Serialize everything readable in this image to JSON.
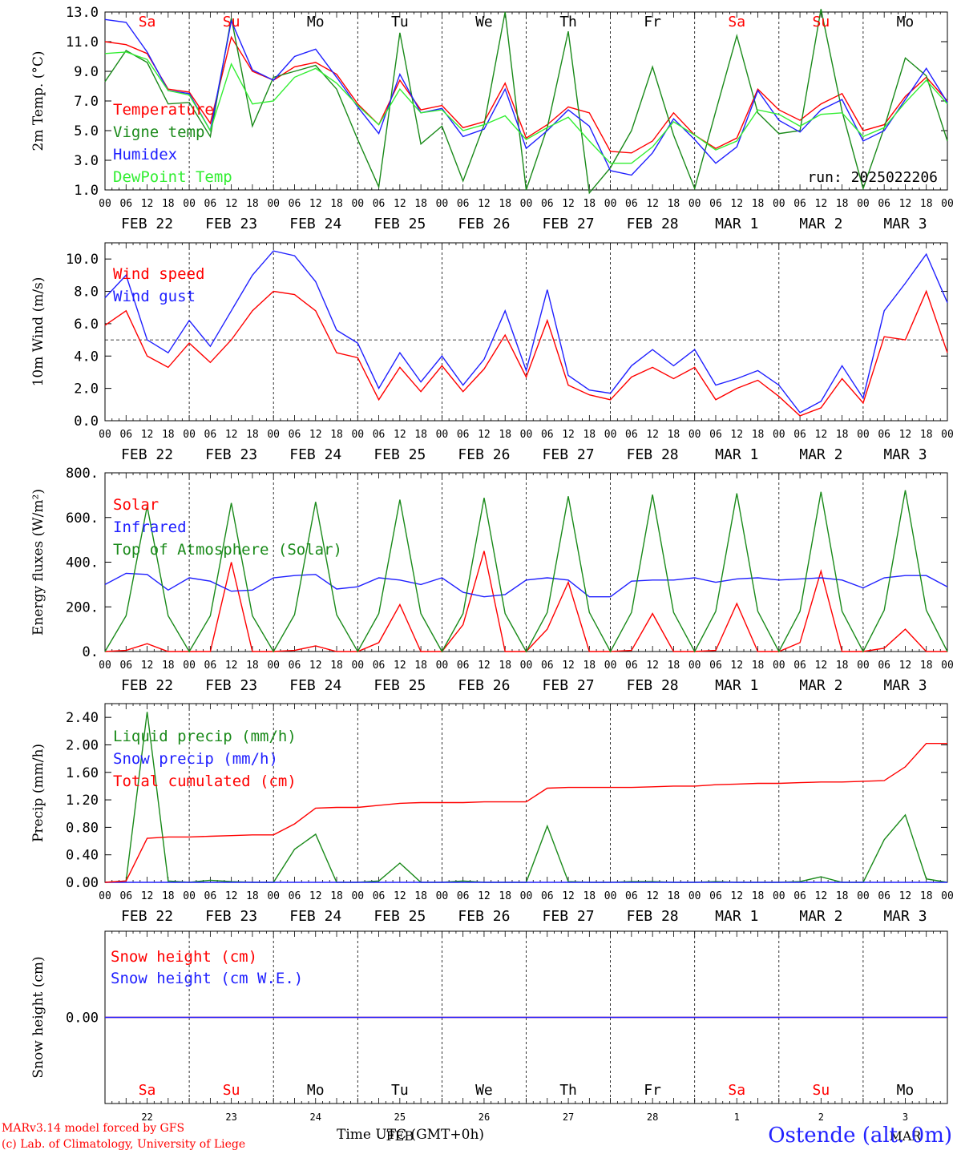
{
  "header": {
    "run_label": "run: 2025022206",
    "days_short": [
      "Sa",
      "Su",
      "Mo",
      "Tu",
      "We",
      "Th",
      "Fr",
      "Sa",
      "Su",
      "Mo"
    ],
    "days_colors": [
      "#ff0000",
      "#ff0000",
      "#000000",
      "#000000",
      "#000000",
      "#000000",
      "#000000",
      "#ff0000",
      "#ff0000",
      "#000000"
    ],
    "date_labels": [
      "FEB 22",
      "FEB 23",
      "FEB 24",
      "FEB 25",
      "FEB 26",
      "FEB 27",
      "FEB 28",
      "MAR  1",
      "MAR  2",
      "MAR  3"
    ],
    "day_numbers": [
      "22",
      "23",
      "24",
      "25",
      "26",
      "27",
      "28",
      "1",
      "2",
      "3"
    ],
    "hour_ticks": [
      "00",
      "06",
      "12",
      "18"
    ],
    "hour_end": "00",
    "month_axis_label": "FEB",
    "month_axis_label2": "MAR"
  },
  "footer": {
    "credit_line1": "MARv3.14 model forced by GFS",
    "credit_line2": "(c) Lab. of Climatology, University of Liege",
    "x_axis_label": "Time UTC (GMT+0h)",
    "station": "Ostende (alt. 0m)"
  },
  "colors": {
    "red": "#ff0000",
    "blue": "#2020ff",
    "green": "#1a8a1a",
    "lightgreen": "#33ee33",
    "grid": "#000000"
  },
  "chart_data": [
    {
      "type": "line",
      "ylabel": "2m Temp. (°C)",
      "ylim": [
        1.0,
        13.0
      ],
      "yticks": [
        "1.0",
        "3.0",
        "5.0",
        "7.0",
        "9.0",
        "11.0",
        "13.0"
      ],
      "x_hours": [
        0,
        6,
        12,
        18,
        24,
        30,
        36,
        42,
        48,
        54,
        60,
        66,
        72,
        78,
        84,
        90,
        96,
        102,
        108,
        114,
        120,
        126,
        132,
        138,
        144,
        150,
        156,
        162,
        168,
        174,
        180,
        186,
        192,
        198,
        204,
        210,
        216,
        222,
        228,
        234,
        240
      ],
      "series": [
        {
          "name": "Temperature",
          "color": "#ff0000",
          "values": [
            11.0,
            10.8,
            10.2,
            7.8,
            7.6,
            5.5,
            11.3,
            9.0,
            8.4,
            9.3,
            9.6,
            8.8,
            6.8,
            5.4,
            8.4,
            6.4,
            6.7,
            5.2,
            5.6,
            8.2,
            4.5,
            5.4,
            6.6,
            6.2,
            3.6,
            3.5,
            4.3,
            6.2,
            4.7,
            3.8,
            4.5,
            7.8,
            6.4,
            5.7,
            6.8,
            7.5,
            5.0,
            5.4,
            7.3,
            8.6,
            7.0
          ]
        },
        {
          "name": "Vigne temp",
          "color": "#1a8a1a",
          "values": [
            8.3,
            10.4,
            9.6,
            6.8,
            6.9,
            4.6,
            12.6,
            5.3,
            8.6,
            9.0,
            9.4,
            7.8,
            4.4,
            1.2,
            11.6,
            4.1,
            5.3,
            1.6,
            5.4,
            13.0,
            1.0,
            5.2,
            11.7,
            0.8,
            2.5,
            5.0,
            9.3,
            4.7,
            1.1,
            6.3,
            11.4,
            6.2,
            4.8,
            5.0,
            13.2,
            6.3,
            1.1,
            5.2,
            9.9,
            8.7,
            4.3
          ]
        },
        {
          "name": "Humidex",
          "color": "#2020ff",
          "values": [
            12.5,
            12.3,
            10.3,
            7.7,
            7.5,
            5.0,
            12.4,
            9.1,
            8.4,
            10.0,
            10.5,
            8.6,
            6.6,
            4.8,
            8.8,
            6.2,
            6.5,
            4.6,
            5.1,
            7.8,
            3.8,
            5.0,
            6.4,
            5.3,
            2.3,
            2.0,
            3.5,
            5.8,
            4.4,
            2.8,
            3.9,
            7.7,
            5.7,
            4.9,
            6.4,
            7.1,
            4.3,
            5.0,
            7.1,
            9.2,
            6.9
          ]
        },
        {
          "name": "DewPoint Temp",
          "color": "#33ee33",
          "values": [
            10.2,
            10.3,
            9.8,
            7.7,
            7.4,
            5.0,
            9.5,
            6.8,
            7.0,
            8.6,
            9.2,
            8.2,
            6.7,
            5.4,
            7.8,
            6.2,
            6.4,
            5.0,
            5.4,
            6.0,
            4.4,
            5.2,
            5.9,
            4.3,
            2.8,
            2.8,
            3.9,
            5.6,
            4.7,
            3.7,
            4.3,
            6.4,
            6.1,
            5.3,
            6.1,
            6.2,
            4.6,
            5.2,
            6.9,
            8.4,
            6.8
          ]
        }
      ]
    },
    {
      "type": "line",
      "ylabel": "10m Wind (m/s)",
      "ylim": [
        0.0,
        11.0
      ],
      "yticks": [
        "0.0",
        "2.0",
        "4.0",
        "6.0",
        "8.0",
        "10.0"
      ],
      "hline": 5.0,
      "x_hours": [
        0,
        6,
        12,
        18,
        24,
        30,
        36,
        42,
        48,
        54,
        60,
        66,
        72,
        78,
        84,
        90,
        96,
        102,
        108,
        114,
        120,
        126,
        132,
        138,
        144,
        150,
        156,
        162,
        168,
        174,
        180,
        186,
        192,
        198,
        204,
        210,
        216,
        222,
        228,
        234,
        240
      ],
      "series": [
        {
          "name": "Wind speed",
          "color": "#ff0000",
          "values": [
            5.9,
            6.8,
            4.0,
            3.3,
            4.8,
            3.6,
            5.0,
            6.8,
            8.0,
            7.8,
            6.8,
            4.2,
            3.9,
            1.3,
            3.3,
            1.8,
            3.4,
            1.8,
            3.2,
            5.3,
            2.7,
            6.2,
            2.2,
            1.6,
            1.3,
            2.7,
            3.3,
            2.6,
            3.3,
            1.3,
            2.0,
            2.5,
            1.5,
            0.3,
            0.8,
            2.6,
            1.1,
            5.2,
            5.0,
            8.0,
            4.2
          ]
        },
        {
          "name": "Wind gust",
          "color": "#2020ff",
          "values": [
            7.6,
            9.0,
            5.0,
            4.2,
            6.2,
            4.6,
            6.8,
            9.0,
            10.5,
            10.2,
            8.6,
            5.6,
            4.8,
            2.0,
            4.2,
            2.4,
            4.0,
            2.2,
            3.8,
            6.8,
            3.1,
            8.1,
            2.8,
            1.9,
            1.7,
            3.4,
            4.4,
            3.4,
            4.4,
            2.2,
            2.6,
            3.1,
            2.2,
            0.5,
            1.2,
            3.4,
            1.4,
            6.8,
            8.5,
            10.3,
            7.3
          ]
        }
      ]
    },
    {
      "type": "line",
      "ylabel": "Energy fluxes (W/m²)",
      "ylim": [
        0,
        800
      ],
      "yticks": [
        "0.",
        "200.",
        "400.",
        "600.",
        "800."
      ],
      "x_hours": [
        0,
        6,
        12,
        18,
        24,
        30,
        36,
        42,
        48,
        54,
        60,
        66,
        72,
        78,
        84,
        90,
        96,
        102,
        108,
        114,
        120,
        126,
        132,
        138,
        144,
        150,
        156,
        162,
        168,
        174,
        180,
        186,
        192,
        198,
        204,
        210,
        216,
        222,
        228,
        234,
        240
      ],
      "series": [
        {
          "name": "Solar",
          "color": "#ff0000",
          "values": [
            0,
            5,
            35,
            0,
            0,
            0,
            400,
            0,
            0,
            5,
            25,
            0,
            0,
            40,
            210,
            0,
            0,
            120,
            450,
            0,
            0,
            100,
            310,
            0,
            0,
            5,
            170,
            0,
            0,
            5,
            215,
            0,
            0,
            40,
            360,
            0,
            0,
            15,
            100,
            0,
            0
          ]
        },
        {
          "name": "Infrared",
          "color": "#2020ff",
          "values": [
            300,
            350,
            345,
            275,
            330,
            315,
            270,
            275,
            330,
            340,
            345,
            280,
            290,
            330,
            320,
            300,
            330,
            265,
            245,
            255,
            320,
            330,
            320,
            245,
            245,
            315,
            320,
            320,
            330,
            310,
            325,
            330,
            320,
            325,
            330,
            320,
            285,
            330,
            340,
            340,
            290
          ]
        },
        {
          "name": "Top of Atmosphere (Solar)",
          "color": "#1a8a1a",
          "values": [
            0,
            160,
            650,
            160,
            0,
            160,
            665,
            160,
            0,
            165,
            670,
            165,
            0,
            170,
            680,
            170,
            0,
            170,
            688,
            170,
            0,
            175,
            695,
            175,
            0,
            175,
            702,
            175,
            0,
            180,
            708,
            180,
            0,
            180,
            715,
            180,
            0,
            185,
            722,
            185,
            0
          ]
        }
      ]
    },
    {
      "type": "line",
      "ylabel": "Precip (mm/h)",
      "ylim": [
        0.0,
        2.6
      ],
      "yticks": [
        "0.00",
        "0.40",
        "0.80",
        "1.20",
        "1.60",
        "2.00",
        "2.40"
      ],
      "x_hours": [
        0,
        6,
        12,
        18,
        24,
        30,
        36,
        42,
        48,
        54,
        60,
        66,
        72,
        78,
        84,
        90,
        96,
        102,
        108,
        114,
        120,
        126,
        132,
        138,
        144,
        150,
        156,
        162,
        168,
        174,
        180,
        186,
        192,
        198,
        204,
        210,
        216,
        222,
        228,
        234,
        240
      ],
      "series": [
        {
          "name": "Liquid precip (mm/h)",
          "color": "#1a8a1a",
          "values": [
            0,
            0.02,
            2.48,
            0.02,
            0,
            0.03,
            0.01,
            0,
            0,
            0.48,
            0.7,
            0,
            0,
            0.02,
            0.28,
            0,
            0,
            0.02,
            0,
            0,
            0,
            0.82,
            0.01,
            0,
            0,
            0.01,
            0.01,
            0,
            0,
            0.01,
            0,
            0,
            0,
            0.01,
            0.08,
            0,
            0,
            0.62,
            0.98,
            0.05,
            0
          ]
        },
        {
          "name": "Snow precip (mm/h)",
          "color": "#2020ff",
          "values": [
            0,
            0,
            0,
            0,
            0,
            0,
            0,
            0,
            0,
            0,
            0,
            0,
            0,
            0,
            0,
            0,
            0,
            0,
            0,
            0,
            0,
            0,
            0,
            0,
            0,
            0,
            0,
            0,
            0,
            0,
            0,
            0,
            0,
            0,
            0,
            0,
            0,
            0,
            0,
            0,
            0
          ]
        },
        {
          "name": "Total cumulated (cm)",
          "color": "#ff0000",
          "values": [
            0,
            0.02,
            0.64,
            0.66,
            0.66,
            0.67,
            0.68,
            0.69,
            0.69,
            0.85,
            1.08,
            1.09,
            1.09,
            1.12,
            1.15,
            1.16,
            1.16,
            1.16,
            1.17,
            1.17,
            1.17,
            1.37,
            1.38,
            1.38,
            1.38,
            1.38,
            1.39,
            1.4,
            1.4,
            1.42,
            1.43,
            1.44,
            1.44,
            1.45,
            1.46,
            1.46,
            1.47,
            1.48,
            1.68,
            2.02,
            2.02
          ]
        }
      ]
    },
    {
      "type": "line",
      "ylabel": "Snow height (cm)",
      "ylim": [
        -1,
        1
      ],
      "yticks": [
        "0.00"
      ],
      "x_hours": [
        0,
        240
      ],
      "series": [
        {
          "name": "Snow height (cm)",
          "color": "#ff0000",
          "values": [
            0,
            0
          ]
        },
        {
          "name": "Snow height (cm W.E.)",
          "color": "#2020ff",
          "values": [
            0,
            0
          ]
        }
      ]
    }
  ]
}
